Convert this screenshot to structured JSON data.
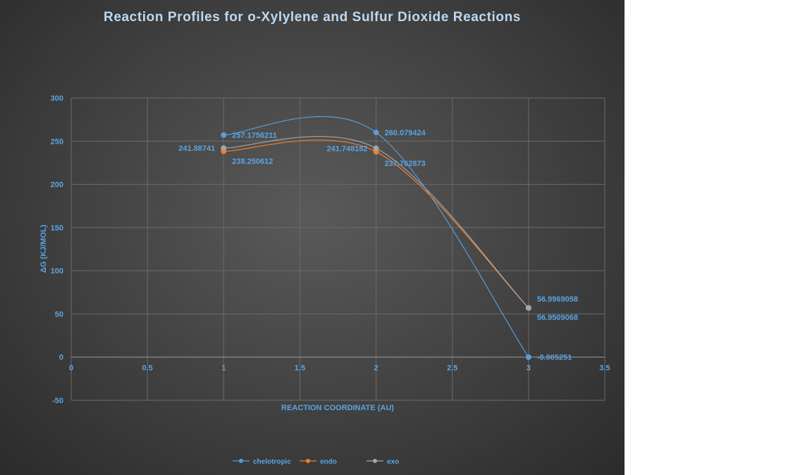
{
  "chart_data": {
    "type": "line",
    "title": "Reaction Profiles for o-Xylylene and Sulfur Dioxide Reactions",
    "xlabel": "REACTION COORDINATE (AU)",
    "ylabel": "ΔG (KJ/MOL)",
    "xlim": [
      0,
      3.5
    ],
    "ylim": [
      -50,
      300
    ],
    "xticks": [
      "0",
      "0.5",
      "1",
      "1.5",
      "2",
      "2.5",
      "3",
      "3.5"
    ],
    "yticks": [
      "-50",
      "0",
      "50",
      "100",
      "150",
      "200",
      "250",
      "300"
    ],
    "grid": true,
    "smooth": true,
    "legend": "bottom",
    "series": [
      {
        "name": "chelotropic",
        "color": "#5b9bd5",
        "x": [
          1,
          2,
          3
        ],
        "y": [
          257.1756211,
          260.079424,
          -0.005251
        ],
        "labels": [
          "257.1756211",
          "260.079424",
          "-0.005251"
        ]
      },
      {
        "name": "endo",
        "color": "#ed7d31",
        "x": [
          1,
          2,
          3
        ],
        "y": [
          238.250612,
          237.762873,
          56.9509068
        ],
        "labels": [
          "238.250612",
          "237.762873",
          "56.9509068"
        ]
      },
      {
        "name": "exo",
        "color": "#a5a5a5",
        "x": [
          1,
          2,
          3
        ],
        "y": [
          241.88741,
          241.748182,
          56.9969058
        ],
        "labels": [
          "241.88741",
          "241.748182",
          "56.9969058"
        ]
      }
    ]
  }
}
